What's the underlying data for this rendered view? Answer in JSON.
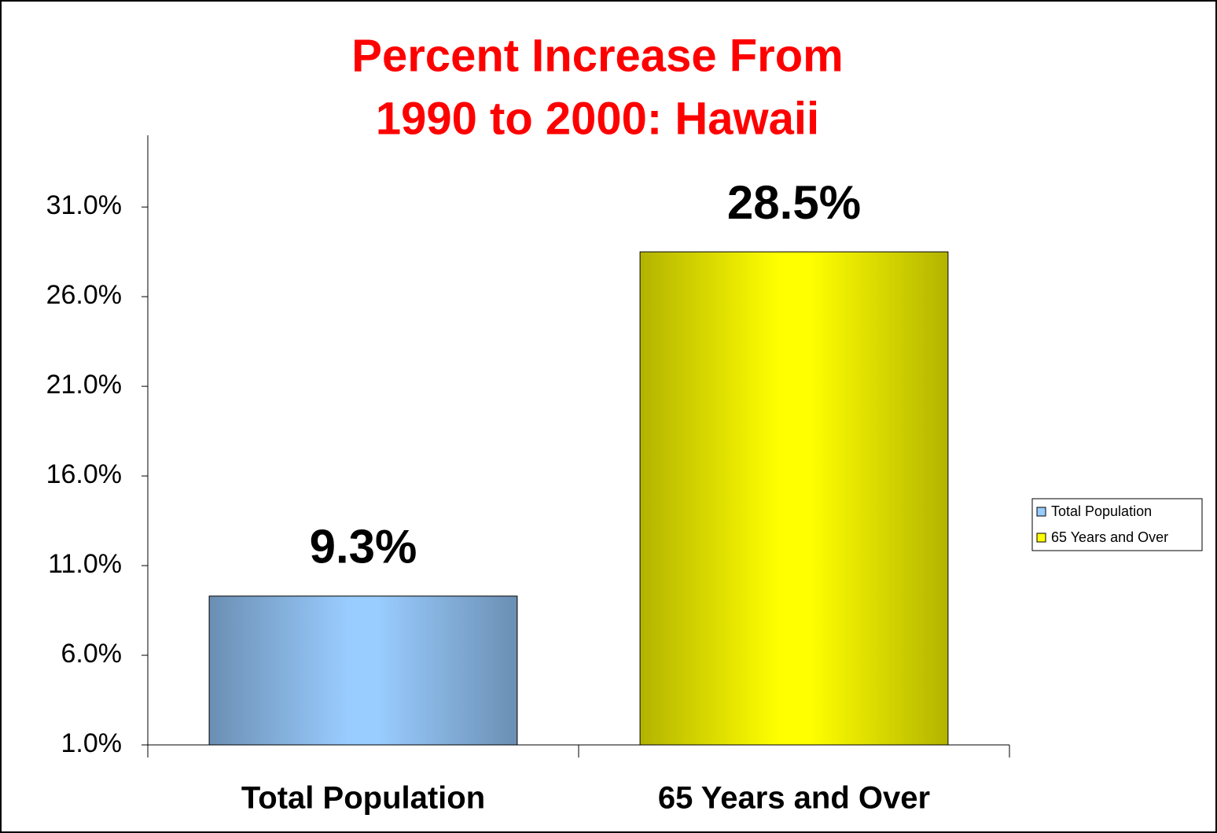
{
  "chart_data": {
    "type": "bar",
    "title": [
      "Percent Increase From",
      "1990 to 2000: Hawaii"
    ],
    "categories": [
      "Total Population",
      "65 Years and Over"
    ],
    "series": [
      {
        "name": "Total Population",
        "color": "#99ccff",
        "values": [
          9.3,
          null
        ],
        "value_labels": [
          "9.3%",
          null
        ]
      },
      {
        "name": "65 Years and Over",
        "color": "#ffff00",
        "values": [
          null,
          28.5
        ],
        "value_labels": [
          null,
          "28.5%"
        ]
      }
    ],
    "ylim": [
      1,
      35
    ],
    "yticks": [
      {
        "value": 1,
        "label": "1.0%"
      },
      {
        "value": 6,
        "label": "6.0%"
      },
      {
        "value": 11,
        "label": "11.0%"
      },
      {
        "value": 16,
        "label": "16.0%"
      },
      {
        "value": 21,
        "label": "21.0%"
      },
      {
        "value": 26,
        "label": "26.0%"
      },
      {
        "value": 31,
        "label": "31.0%"
      }
    ],
    "grid": false,
    "legend": "right"
  }
}
